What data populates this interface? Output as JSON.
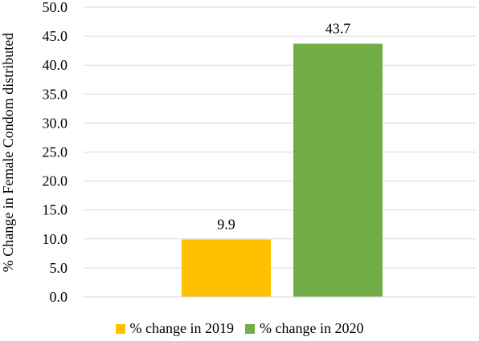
{
  "chart_data": {
    "type": "bar",
    "ylabel": "% Change in Female Condom distributed",
    "ylim": [
      0,
      50
    ],
    "ytick_step": 5,
    "ytick_labels": [
      "0.0",
      "5.0",
      "10.0",
      "15.0",
      "20.0",
      "25.0",
      "30.0",
      "35.0",
      "40.0",
      "45.0",
      "50.0"
    ],
    "grid": true,
    "legend_position": "bottom",
    "series": [
      {
        "name": "% change in 2019",
        "value": 9.9,
        "label": "9.9",
        "color": "#FFC000"
      },
      {
        "name": "% change in 2020",
        "value": 43.7,
        "label": "43.7",
        "color": "#70AD47"
      }
    ]
  }
}
